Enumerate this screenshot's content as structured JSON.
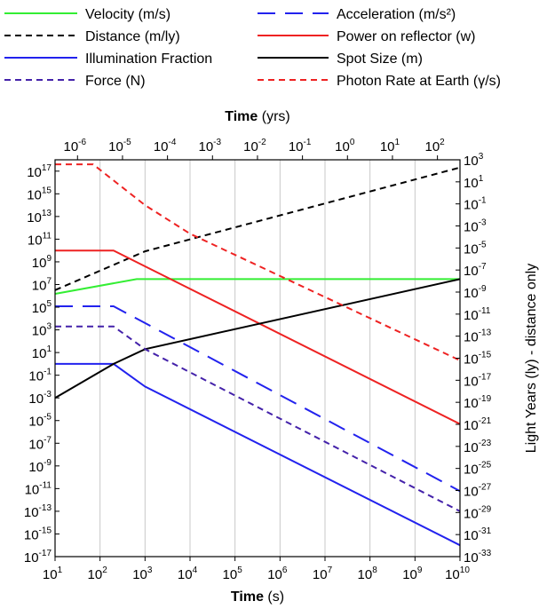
{
  "chart_data": {
    "type": "line",
    "title": "",
    "axes": {
      "bottom": {
        "title_bold": "Time",
        "title_unit": " (s)",
        "scale": "log",
        "range": [
          10.0,
          10000000000.0
        ],
        "tick_labels": [
          {
            "base": "10",
            "exp": "1"
          },
          {
            "base": "10",
            "exp": "2"
          },
          {
            "base": "10",
            "exp": "3"
          },
          {
            "base": "10",
            "exp": "4"
          },
          {
            "base": "10",
            "exp": "5"
          },
          {
            "base": "10",
            "exp": "6"
          },
          {
            "base": "10",
            "exp": "7"
          },
          {
            "base": "10",
            "exp": "8"
          },
          {
            "base": "10",
            "exp": "9"
          },
          {
            "base": "10",
            "exp": "10"
          }
        ]
      },
      "top": {
        "title_bold": "Time",
        "title_unit": " (yrs)",
        "scale": "log",
        "tick_labels": [
          {
            "base": "10",
            "exp": "-6"
          },
          {
            "base": "10",
            "exp": "-5"
          },
          {
            "base": "10",
            "exp": "-4"
          },
          {
            "base": "10",
            "exp": "-3"
          },
          {
            "base": "10",
            "exp": "-2"
          },
          {
            "base": "10",
            "exp": "-1"
          },
          {
            "base": "10",
            "exp": "0"
          },
          {
            "base": "10",
            "exp": "1"
          },
          {
            "base": "10",
            "exp": "2"
          }
        ]
      },
      "left": {
        "title": "",
        "scale": "log",
        "range": [
          1e-17,
          1e+18
        ],
        "tick_labels": [
          {
            "base": "10",
            "exp": "17"
          },
          {
            "base": "10",
            "exp": "15"
          },
          {
            "base": "10",
            "exp": "13"
          },
          {
            "base": "10",
            "exp": "11"
          },
          {
            "base": "10",
            "exp": "9"
          },
          {
            "base": "10",
            "exp": "7"
          },
          {
            "base": "10",
            "exp": "5"
          },
          {
            "base": "10",
            "exp": "3"
          },
          {
            "base": "10",
            "exp": "1"
          },
          {
            "base": "10",
            "exp": "-1"
          },
          {
            "base": "10",
            "exp": "-3"
          },
          {
            "base": "10",
            "exp": "-5"
          },
          {
            "base": "10",
            "exp": "-7"
          },
          {
            "base": "10",
            "exp": "-9"
          },
          {
            "base": "10",
            "exp": "-11"
          },
          {
            "base": "10",
            "exp": "-13"
          },
          {
            "base": "10",
            "exp": "-15"
          },
          {
            "base": "10",
            "exp": "-17"
          }
        ]
      },
      "right": {
        "title": "Light Years (ly) - distance only",
        "scale": "log",
        "range": [
          1e-33,
          1000.0
        ],
        "tick_labels": [
          {
            "base": "10",
            "exp": "3"
          },
          {
            "base": "10",
            "exp": "1"
          },
          {
            "base": "10",
            "exp": "-1"
          },
          {
            "base": "10",
            "exp": "-3"
          },
          {
            "base": "10",
            "exp": "-5"
          },
          {
            "base": "10",
            "exp": "-7"
          },
          {
            "base": "10",
            "exp": "-9"
          },
          {
            "base": "10",
            "exp": "-11"
          },
          {
            "base": "10",
            "exp": "-13"
          },
          {
            "base": "10",
            "exp": "-15"
          },
          {
            "base": "10",
            "exp": "-17"
          },
          {
            "base": "10",
            "exp": "-19"
          },
          {
            "base": "10",
            "exp": "-21"
          },
          {
            "base": "10",
            "exp": "-23"
          },
          {
            "base": "10",
            "exp": "-25"
          },
          {
            "base": "10",
            "exp": "-27"
          },
          {
            "base": "10",
            "exp": "-29"
          },
          {
            "base": "10",
            "exp": "-31"
          },
          {
            "base": "10",
            "exp": "-33"
          }
        ]
      }
    },
    "grid": {
      "vertical": true,
      "horizontal": false
    },
    "legend_position": "top",
    "series": [
      {
        "name": "Velocity (m/s)",
        "color": "#33ee33",
        "dash": "solid",
        "axis": "left",
        "points": [
          [
            10,
            1500000.0
          ],
          [
            650,
            30000000.0
          ],
          [
            10000000000.0,
            30000000.0
          ]
        ]
      },
      {
        "name": "Acceleration (m/s²)",
        "color": "#2222ee",
        "dash": "long-dash",
        "axis": "left",
        "points": [
          [
            10,
            120000.0
          ],
          [
            200,
            120000.0
          ],
          [
            10000000000.0,
            6e-12
          ]
        ]
      },
      {
        "name": "Distance (m/ly)",
        "color": "#000000",
        "dash": "short-dash",
        "axis": "right",
        "points": [
          [
            10,
            1.5e-09
          ],
          [
            1000.0,
            5e-06
          ],
          [
            10000000000.0,
            200.0
          ]
        ]
      },
      {
        "name": "Power on reflector (w)",
        "color": "#ee2222",
        "dash": "solid",
        "axis": "left",
        "points": [
          [
            10,
            10000000000.0
          ],
          [
            200,
            10000000000.0
          ],
          [
            1000.0,
            400000000.0
          ],
          [
            10000000000.0,
            5e-06
          ]
        ]
      },
      {
        "name": "Illumination Fraction",
        "color": "#2222ee",
        "dash": "solid",
        "axis": "left",
        "points": [
          [
            10,
            1.0
          ],
          [
            200,
            1.0
          ],
          [
            1000.0,
            0.01
          ],
          [
            10000000000.0,
            1e-16
          ]
        ]
      },
      {
        "name": "Spot Size (m)",
        "color": "#000000",
        "dash": "solid",
        "axis": "left",
        "points": [
          [
            10,
            0.001
          ],
          [
            200,
            1.0
          ],
          [
            1000.0,
            20.0
          ],
          [
            10000000000.0,
            30000000.0
          ]
        ]
      },
      {
        "name": "Force (N)",
        "color": "#4422aa",
        "dash": "short-dash",
        "axis": "left",
        "points": [
          [
            10,
            2000.0
          ],
          [
            200,
            2000.0
          ],
          [
            1000.0,
            20.0
          ],
          [
            10000000000.0,
            1e-13
          ]
        ]
      },
      {
        "name": "Photon Rate at Earth (γ/s)",
        "color": "#ee2222",
        "dash": "short-dash",
        "axis": "left",
        "points": [
          [
            10,
            4e+17
          ],
          [
            70,
            4e+17
          ],
          [
            1000.0,
            100000000000000.0
          ],
          [
            10000.0,
            300000000000.0
          ],
          [
            10000000000.0,
            2.0
          ]
        ]
      }
    ]
  }
}
